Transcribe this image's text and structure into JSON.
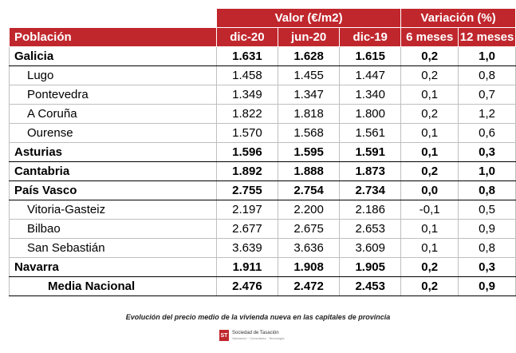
{
  "header": {
    "group_valor": "Valor (€/m2)",
    "group_variacion": "Variación (%)",
    "col_poblacion": "Población",
    "col_dic20": "dic-20",
    "col_jun20": "jun-20",
    "col_dic19": "dic-19",
    "col_6m": "6 meses",
    "col_12m": "12 meses"
  },
  "rows": [
    {
      "name": "Galicia",
      "dic20": "1.631",
      "jun20": "1.628",
      "dic19": "1.615",
      "m6": "0,2",
      "m12": "1,0"
    },
    {
      "name": "Lugo",
      "dic20": "1.458",
      "jun20": "1.455",
      "dic19": "1.447",
      "m6": "0,2",
      "m12": "0,8"
    },
    {
      "name": "Pontevedra",
      "dic20": "1.349",
      "jun20": "1.347",
      "dic19": "1.340",
      "m6": "0,1",
      "m12": "0,7"
    },
    {
      "name": "A Coruña",
      "dic20": "1.822",
      "jun20": "1.818",
      "dic19": "1.800",
      "m6": "0,2",
      "m12": "1,2"
    },
    {
      "name": "Ourense",
      "dic20": "1.570",
      "jun20": "1.568",
      "dic19": "1.561",
      "m6": "0,1",
      "m12": "0,6"
    },
    {
      "name": "Asturias",
      "dic20": "1.596",
      "jun20": "1.595",
      "dic19": "1.591",
      "m6": "0,1",
      "m12": "0,3"
    },
    {
      "name": "Cantabria",
      "dic20": "1.892",
      "jun20": "1.888",
      "dic19": "1.873",
      "m6": "0,2",
      "m12": "1,0"
    },
    {
      "name": "País Vasco",
      "dic20": "2.755",
      "jun20": "2.754",
      "dic19": "2.734",
      "m6": "0,0",
      "m12": "0,8"
    },
    {
      "name": "Vitoria-Gasteiz",
      "dic20": "2.197",
      "jun20": "2.200",
      "dic19": "2.186",
      "m6": "-0,1",
      "m12": "0,5"
    },
    {
      "name": "Bilbao",
      "dic20": "2.677",
      "jun20": "2.675",
      "dic19": "2.653",
      "m6": "0,1",
      "m12": "0,9"
    },
    {
      "name": "San Sebastián",
      "dic20": "3.639",
      "jun20": "3.636",
      "dic19": "3.609",
      "m6": "0,1",
      "m12": "0,8"
    },
    {
      "name": "Navarra",
      "dic20": "1.911",
      "jun20": "1.908",
      "dic19": "1.905",
      "m6": "0,2",
      "m12": "0,3"
    },
    {
      "name": "Media Nacional",
      "dic20": "2.476",
      "jun20": "2.472",
      "dic19": "2.453",
      "m6": "0,2",
      "m12": "0,9"
    }
  ],
  "caption": "Evolución del precio medio de la vivienda nueva en las capitales de provincia",
  "logo": {
    "mark": "ST",
    "name": "Sociedad de Tasación",
    "tagline": "Valoración · Consultoría · Tecnología"
  },
  "colors": {
    "header_red": "#c0272d"
  }
}
